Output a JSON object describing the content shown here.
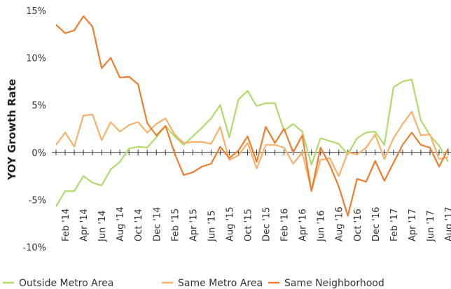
{
  "chart_data": {
    "type": "line",
    "y_label": "YOY Growth Rate",
    "categories": [
      null,
      "Feb '14",
      null,
      "Apr '14",
      null,
      "Jun '14",
      null,
      "Aug '14",
      null,
      "Oct '14",
      null,
      "Dec '14",
      null,
      "Feb '15",
      null,
      "Apr '15",
      null,
      "Jun '15",
      null,
      "Aug '15",
      null,
      "Oct '15",
      null,
      "Dec '15",
      null,
      "Feb '16",
      null,
      "Apr '16",
      null,
      "Jun '16",
      null,
      "Aug '16",
      null,
      "Oct '16",
      null,
      "Dec '16",
      null,
      "Feb '17",
      null,
      "Apr '17",
      null,
      "Jun '17",
      null,
      "Aug '17"
    ],
    "series": [
      {
        "name": "Outside Metro Area",
        "color": "#aedb6a",
        "values": [
          -5.7,
          -4.1,
          -4.1,
          -2.5,
          -3.2,
          -3.5,
          -1.8,
          -1.0,
          0.4,
          0.6,
          0.5,
          1.6,
          2.8,
          1.7,
          0.8,
          1.7,
          2.6,
          3.6,
          5.0,
          1.6,
          5.6,
          6.5,
          4.9,
          5.2,
          5.2,
          2.3,
          3.0,
          2.2,
          -1.3,
          1.5,
          1.2,
          0.9,
          -0.2,
          1.5,
          2.1,
          2.2,
          0.8,
          6.9,
          7.5,
          7.7,
          3.4,
          1.8,
          0.7,
          -1.0
        ]
      },
      {
        "name": "Same Metro Area",
        "color": "#f8b06a",
        "values": [
          0.8,
          2.1,
          0.6,
          3.9,
          4.0,
          1.3,
          3.2,
          2.2,
          2.9,
          3.2,
          2.1,
          3.0,
          3.6,
          1.9,
          1.0,
          1.1,
          1.1,
          0.9,
          2.7,
          -0.8,
          -0.3,
          1.0,
          -1.7,
          0.8,
          0.8,
          0.5,
          -1.2,
          0,
          -4.0,
          -0.8,
          -0.6,
          -2.5,
          0,
          -0.2,
          0.5,
          1.9,
          -0.7,
          1.5,
          3.0,
          4.3,
          1.8,
          1.9,
          -0.7,
          -0.5
        ]
      },
      {
        "name": "Same Neighborhood",
        "color": "#ee7d2e",
        "values": [
          13.5,
          12.6,
          12.9,
          14.4,
          13.3,
          8.9,
          10.0,
          7.9,
          8.0,
          7.2,
          3.1,
          1.8,
          2.8,
          -0.1,
          -2.4,
          -2.1,
          -1.5,
          -1.2,
          0.6,
          -0.6,
          0.2,
          1.7,
          -1.0,
          2.7,
          1.0,
          2.5,
          0,
          1.8,
          -4.1,
          0.5,
          -1.3,
          -3.6,
          -6.7,
          -2.8,
          -3.1,
          -0.9,
          -3.0,
          -1.1,
          0.8,
          2.1,
          0.8,
          0.5,
          -1.5,
          0.4
        ]
      }
    ],
    "ylim": [
      -10,
      15
    ],
    "yticks": [
      {
        "value": -10,
        "label": "-10%"
      },
      {
        "value": -5,
        "label": "-5%"
      },
      {
        "value": 0,
        "label": "0%"
      },
      {
        "value": 5,
        "label": "5%"
      },
      {
        "value": 10,
        "label": "10%"
      },
      {
        "value": 15,
        "label": "15%"
      }
    ],
    "zero_line": true
  }
}
